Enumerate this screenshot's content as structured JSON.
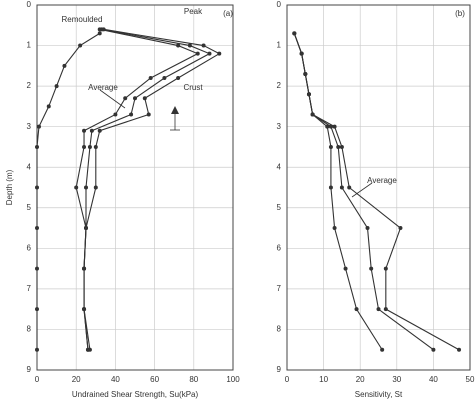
{
  "chart_data": [
    {
      "type": "line",
      "xlabel": "Undrained Shear Strength, Su(kPa)",
      "ylabel": "Depth (m)",
      "xlim": [
        0,
        100
      ],
      "xticks": [
        0,
        20,
        40,
        60,
        80,
        100
      ],
      "ylim": [
        0,
        9
      ],
      "yticks": [
        0,
        1,
        2,
        3,
        4,
        5,
        6,
        7,
        8,
        9
      ],
      "y_inverted": true,
      "grid": true,
      "annotations": [
        "(a)",
        "Crust"
      ],
      "series": [
        {
          "name": "Remoulded",
          "color": "#333333",
          "x": [
            32,
            22,
            14,
            10,
            6,
            1,
            0,
            0,
            0,
            0,
            0,
            0
          ],
          "y": [
            0.7,
            1.0,
            1.5,
            2.0,
            2.5,
            3.0,
            3.5,
            4.5,
            5.5,
            6.5,
            7.5,
            8.5
          ]
        },
        {
          "color": "#333333",
          "x": [
            32,
            72,
            82,
            58,
            45,
            40,
            24,
            24,
            20,
            25,
            24,
            24,
            26
          ],
          "y": [
            0.6,
            1.0,
            1.2,
            1.8,
            2.3,
            2.7,
            3.1,
            3.5,
            4.5,
            5.5,
            6.5,
            7.5,
            8.5
          ]
        },
        {
          "name": "Average",
          "color": "#333333",
          "x": [
            33,
            78,
            88,
            65,
            50,
            48,
            28,
            27,
            25,
            25,
            24,
            24,
            26
          ],
          "y": [
            0.6,
            1.0,
            1.2,
            1.8,
            2.3,
            2.7,
            3.1,
            3.5,
            4.5,
            5.5,
            6.5,
            7.5,
            8.5
          ]
        },
        {
          "name": "Peak",
          "color": "#333333",
          "x": [
            34,
            85,
            93,
            72,
            55,
            57,
            32,
            30,
            30,
            25,
            24,
            24,
            27
          ],
          "y": [
            0.6,
            1.0,
            1.2,
            1.8,
            2.3,
            2.7,
            3.1,
            3.5,
            4.5,
            5.5,
            6.5,
            7.5,
            8.5
          ]
        }
      ]
    },
    {
      "type": "line",
      "xlabel": "Sensitivity, St",
      "xlim": [
        0,
        50
      ],
      "xticks": [
        0,
        10,
        20,
        30,
        40,
        50
      ],
      "ylim": [
        0,
        9
      ],
      "yticks": [
        0,
        1,
        2,
        3,
        4,
        5,
        6,
        7,
        8,
        9
      ],
      "y_inverted": true,
      "grid": true,
      "annotations": [
        "(b)"
      ],
      "series": [
        {
          "color": "#333333",
          "x": [
            2,
            4,
            5,
            6,
            7,
            11,
            12,
            12,
            13,
            16,
            19,
            26
          ],
          "y": [
            0.7,
            1.2,
            1.7,
            2.2,
            2.7,
            3.0,
            3.5,
            4.5,
            5.5,
            6.5,
            7.5,
            8.5
          ]
        },
        {
          "name": "Average",
          "color": "#333333",
          "x": [
            2,
            4,
            5,
            6,
            7,
            12,
            14,
            15,
            22,
            23,
            25,
            40
          ],
          "y": [
            0.7,
            1.2,
            1.7,
            2.2,
            2.7,
            3.0,
            3.5,
            4.5,
            5.5,
            6.5,
            7.5,
            8.5
          ]
        },
        {
          "color": "#333333",
          "x": [
            2,
            4,
            5,
            6,
            7,
            13,
            15,
            17,
            31,
            27,
            27,
            47
          ],
          "y": [
            0.7,
            1.2,
            1.7,
            2.2,
            2.7,
            3.0,
            3.5,
            4.5,
            5.5,
            6.5,
            7.5,
            8.5
          ]
        }
      ]
    }
  ]
}
